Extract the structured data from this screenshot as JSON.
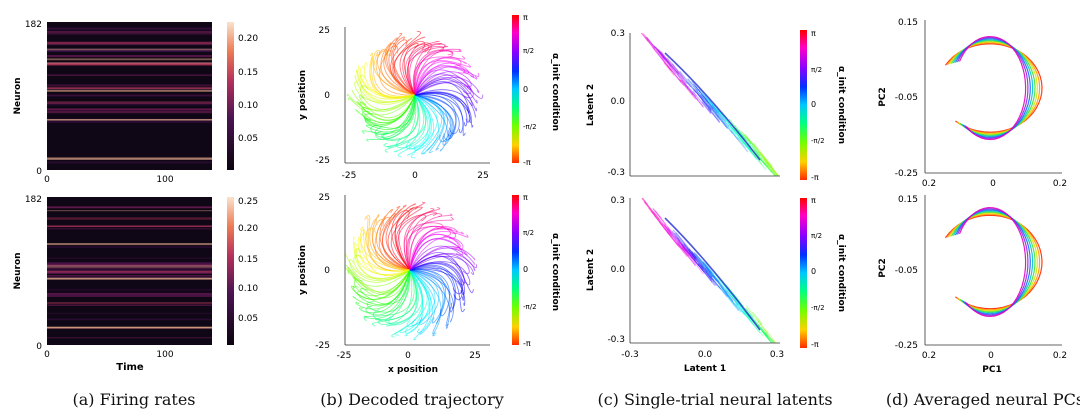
{
  "captions": {
    "a": "(a) Firing rates",
    "b": "(b) Decoded trajectory",
    "c": "(c) Single-trial neural latents",
    "d": "(d) Averaged neural PCs"
  },
  "colors": {
    "heat_dark": "#100716",
    "heat_mid": "#b3305c",
    "heat_bright": "#f6c9a5",
    "axis": "#222222"
  },
  "chart_data": [
    {
      "panel": "a-top",
      "type": "heatmap",
      "xlabel": "",
      "ylabel": "Neuron",
      "y_ticks": [
        "182",
        "0"
      ],
      "x_ticks": [
        "0",
        "100"
      ],
      "colorbar_ticks": [
        "0.20",
        "0.15",
        "0.10",
        "0.05"
      ],
      "colorbar_range": [
        0,
        0.22
      ]
    },
    {
      "panel": "a-bottom",
      "type": "heatmap",
      "xlabel": "Time",
      "ylabel": "Neuron",
      "y_ticks": [
        "182",
        "0"
      ],
      "x_ticks": [
        "0",
        "100"
      ],
      "colorbar_ticks": [
        "0.25",
        "0.20",
        "0.15",
        "0.10",
        "0.05"
      ],
      "colorbar_range": [
        0,
        0.27
      ]
    },
    {
      "panel": "b-top",
      "type": "line",
      "xlabel": "",
      "ylabel": "y position",
      "x_ticks": [
        "-25",
        "0",
        "25"
      ],
      "y_ticks": [
        "25",
        "0",
        "-25"
      ],
      "xlim": [
        -30,
        30
      ],
      "ylim": [
        -27,
        27
      ],
      "colorbar_label": "α_init condition",
      "colorbar_ticks": [
        "π",
        "π/2",
        "0",
        "-π/2",
        "-π"
      ]
    },
    {
      "panel": "b-bottom",
      "type": "line",
      "xlabel": "x position",
      "ylabel": "y position",
      "x_ticks": [
        "-25",
        "0",
        "25"
      ],
      "y_ticks": [
        "25",
        "0",
        "-25"
      ],
      "xlim": [
        -30,
        30
      ],
      "ylim": [
        -27,
        27
      ],
      "colorbar_label": "α_init condition",
      "colorbar_ticks": [
        "π",
        "π/2",
        "0",
        "-π/2",
        "-π"
      ]
    },
    {
      "panel": "c-top",
      "type": "scatter",
      "xlabel": "",
      "ylabel": "Latent 2",
      "y_ticks": [
        "0.3",
        "0.0",
        "-0.3"
      ],
      "x_ticks": [],
      "colorbar_label": "α_init condition",
      "colorbar_ticks": [
        "π",
        "π/2",
        "0",
        "-π/2",
        "-π"
      ]
    },
    {
      "panel": "c-bottom",
      "type": "scatter",
      "xlabel": "Latent 1",
      "ylabel": "Latent 2",
      "y_ticks": [
        "0.3",
        "0.0",
        "-0.3"
      ],
      "x_ticks": [
        "-0.3",
        "0.0",
        "0.3"
      ],
      "colorbar_label": "α_init condition",
      "colorbar_ticks": [
        "π",
        "π/2",
        "0",
        "-π/2",
        "-π"
      ]
    },
    {
      "panel": "d-top",
      "type": "line",
      "xlabel": "",
      "ylabel": "PC2",
      "y_ticks": [
        "0.15",
        "-0.05",
        "-0.25"
      ],
      "x_ticks": [
        "0.2",
        "0",
        "0.2"
      ]
    },
    {
      "panel": "d-bottom",
      "type": "line",
      "xlabel": "PC1",
      "ylabel": "PC2",
      "y_ticks": [
        "0.15",
        "-0.05",
        "-0.25"
      ],
      "x_ticks": [
        "0.2",
        "0",
        "0.2"
      ]
    }
  ]
}
